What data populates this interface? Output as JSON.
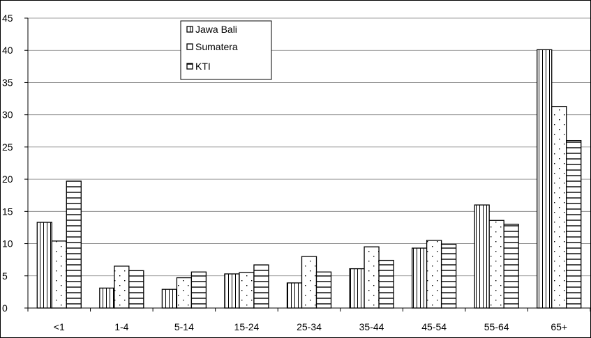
{
  "chart_data": {
    "type": "bar",
    "categories": [
      "<1",
      "1-4",
      "5-14",
      "15-24",
      "25-34",
      "35-44",
      "45-54",
      "55-64",
      "65+"
    ],
    "series": [
      {
        "name": "Jawa Bali",
        "pattern": "vertical-lines",
        "values": [
          13.3,
          3.1,
          2.9,
          5.3,
          3.9,
          6.1,
          9.3,
          16.0,
          40.1
        ]
      },
      {
        "name": "Sumatera",
        "pattern": "dots",
        "values": [
          10.4,
          6.5,
          4.7,
          5.5,
          8.0,
          9.5,
          10.5,
          13.6,
          31.3
        ]
      },
      {
        "name": "KTI",
        "pattern": "horizontal-lines",
        "values": [
          19.7,
          5.8,
          5.6,
          6.7,
          5.6,
          7.4,
          9.9,
          13.0,
          26.0
        ]
      }
    ],
    "ylim": [
      0,
      45
    ],
    "yticks": [
      0,
      5,
      10,
      15,
      20,
      25,
      30,
      35,
      40,
      45
    ],
    "grid": true,
    "legend_position": "top-left-inside"
  }
}
